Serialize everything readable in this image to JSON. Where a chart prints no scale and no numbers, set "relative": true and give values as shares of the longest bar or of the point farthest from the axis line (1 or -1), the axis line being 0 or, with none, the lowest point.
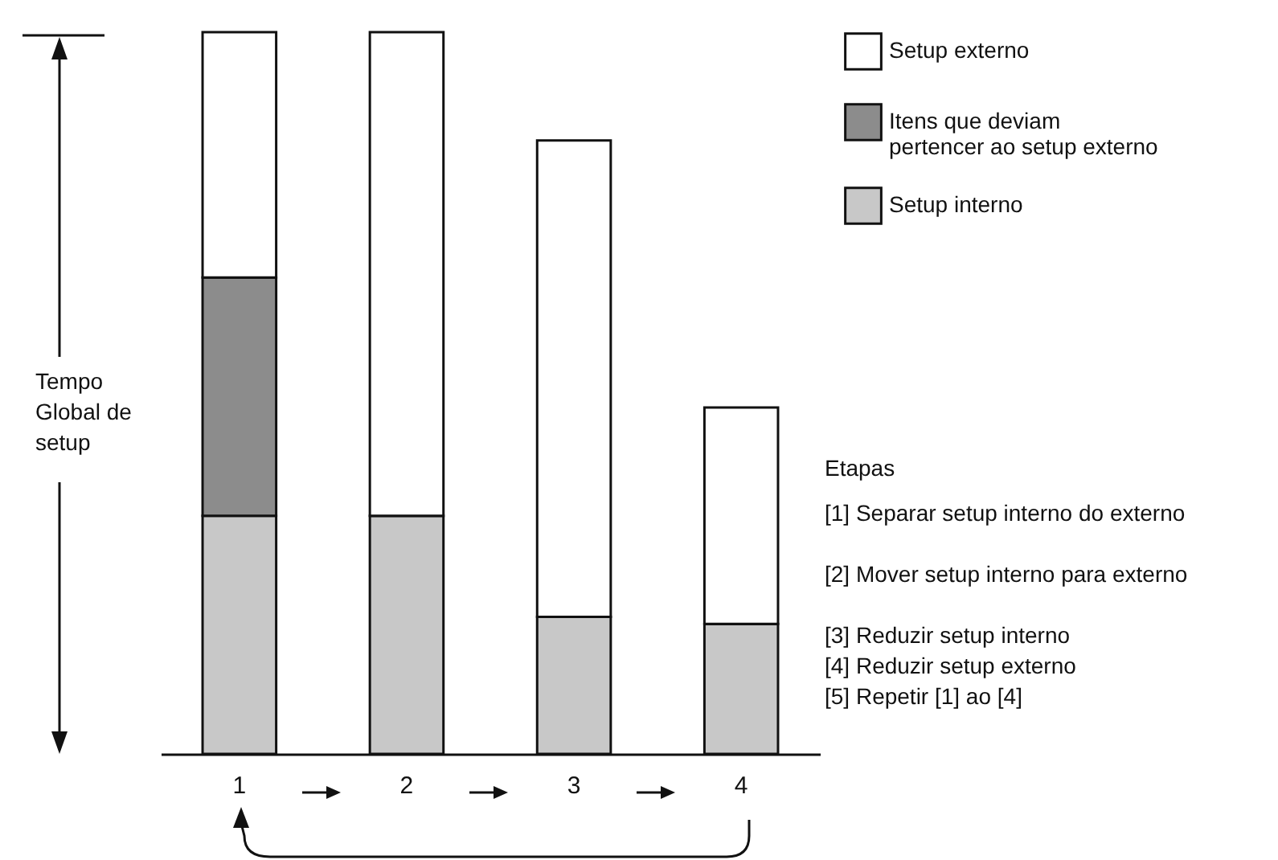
{
  "chart_data": {
    "type": "bar",
    "stacked": true,
    "relative": true,
    "categories": [
      "1",
      "2",
      "3",
      "4"
    ],
    "series": [
      {
        "name": "Setup interno",
        "color": "#c8c8c8",
        "values": [
          0.33,
          0.33,
          0.19,
          0.18
        ]
      },
      {
        "name": "Itens que deviam pertencer ao setup externo",
        "color": "#8c8c8c",
        "values": [
          0.33,
          0,
          0,
          0
        ]
      },
      {
        "name": "Setup externo",
        "color": "#ffffff",
        "values": [
          0.34,
          0.67,
          0.66,
          0.3
        ]
      }
    ],
    "legend": "top right",
    "annotations": [
      "Tempo Global de setup",
      "Etapas",
      "[1] Separar setup interno do externo",
      "[2] Mover setup interno para externo",
      "[3] Reduzir setup interno",
      "[4] Reduzir setup externo",
      "[5] Repetir [1] ao [4]"
    ]
  }
}
